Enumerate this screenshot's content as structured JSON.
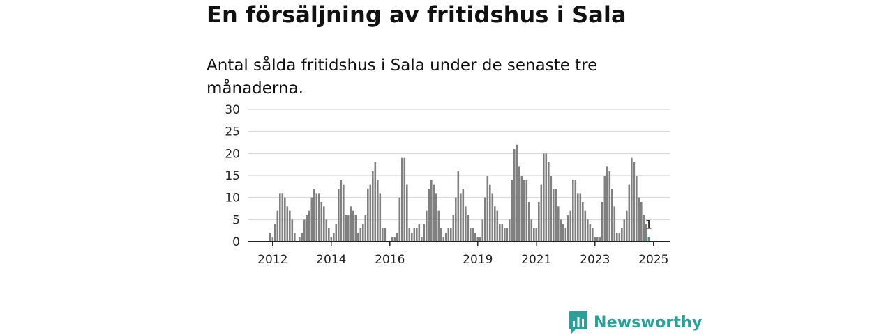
{
  "header": {
    "title": "En försäljning av fritidshus i Sala",
    "subtitle": "Antal sålda fritidshus i Sala under de senaste tre månaderna."
  },
  "brand": {
    "name": "Newsworthy",
    "icon": "newsworthy-chart-icon",
    "color": "#2aa198"
  },
  "colors": {
    "bar": "#808080",
    "highlight": "#2aa198",
    "grid": "#d8d8d8",
    "axis": "#222222"
  },
  "chart_data": {
    "type": "bar",
    "title": "En försäljning av fritidshus i Sala",
    "subtitle": "Antal sålda fritidshus i Sala under de senaste tre månaderna.",
    "ylim": [
      0,
      30
    ],
    "yticks": [
      0,
      5,
      10,
      15,
      20,
      25,
      30
    ],
    "xtick_labels": [
      {
        "label": "2012",
        "year": 2012
      },
      {
        "label": "2014",
        "year": 2014
      },
      {
        "label": "2016",
        "year": 2016
      },
      {
        "label": "2019",
        "year": 2019
      },
      {
        "label": "2021",
        "year": 2021
      },
      {
        "label": "2023",
        "year": 2023
      },
      {
        "label": "2025",
        "year": 2025
      }
    ],
    "grid": true,
    "legend": "none",
    "highlight_last": true,
    "series": [
      {
        "start": "2011-12",
        "frequency": "monthly",
        "values": [
          2,
          1,
          4,
          7,
          11,
          11,
          10,
          8,
          7,
          5,
          2,
          0,
          1,
          2,
          5,
          6,
          7,
          10,
          12,
          11,
          11,
          9,
          8,
          5,
          3,
          1,
          2,
          4,
          12,
          14,
          13,
          6,
          6,
          8,
          7,
          6,
          2,
          3,
          4,
          6,
          12,
          13,
          16,
          18,
          14,
          11,
          3,
          3,
          0,
          0,
          1,
          1,
          2,
          10,
          19,
          19,
          13,
          3,
          2,
          3,
          3,
          4,
          1,
          4,
          7,
          12,
          14,
          13,
          11,
          7,
          3,
          1,
          2,
          3,
          3,
          6,
          10,
          16,
          11,
          12,
          8,
          6,
          3,
          3,
          2,
          1,
          1,
          5,
          10,
          15,
          13,
          11,
          8,
          7,
          4,
          4,
          3,
          3,
          5,
          14,
          21,
          22,
          17,
          15,
          14,
          14,
          9,
          5,
          3,
          3,
          9,
          13,
          20,
          20,
          18,
          15,
          12,
          12,
          8,
          5,
          4,
          3,
          6,
          7,
          14,
          14,
          11,
          11,
          9,
          7,
          5,
          4,
          3,
          1,
          1,
          1,
          9,
          15,
          17,
          16,
          12,
          8,
          2,
          2,
          3,
          5,
          7,
          13,
          19,
          18,
          15,
          10,
          9,
          6,
          4,
          1
        ]
      }
    ],
    "annotations": [
      {
        "text": "1",
        "target": "last"
      }
    ]
  }
}
